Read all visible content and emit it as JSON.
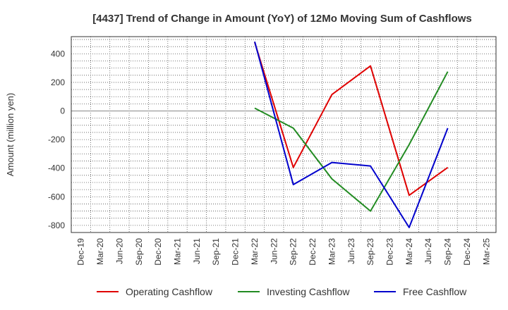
{
  "chart_data": {
    "type": "line",
    "title": "[4437]  Trend of Change in Amount (YoY) of 12Mo Moving Sum of Cashflows",
    "xlabel": "",
    "ylabel": "Amount (million yen)",
    "ylim": [
      -850,
      520
    ],
    "yticks": [
      400,
      200,
      0,
      -200,
      -400,
      -600,
      -800
    ],
    "categories": [
      "Dec-19",
      "Mar-20",
      "Jun-20",
      "Sep-20",
      "Dec-20",
      "Mar-21",
      "Jun-21",
      "Sep-21",
      "Dec-21",
      "Mar-22",
      "Jun-22",
      "Sep-22",
      "Dec-22",
      "Mar-23",
      "Jun-23",
      "Sep-23",
      "Dec-23",
      "Mar-24",
      "Jun-24",
      "Sep-24",
      "Dec-24",
      "Mar-25"
    ],
    "series": [
      {
        "name": "Operating Cashflow",
        "color": "#e00000",
        "values": [
          null,
          null,
          null,
          null,
          null,
          null,
          null,
          null,
          null,
          480,
          null,
          -395,
          null,
          115,
          null,
          315,
          null,
          -590,
          null,
          -395,
          null,
          null
        ]
      },
      {
        "name": "Investing Cashflow",
        "color": "#228b22",
        "values": [
          null,
          null,
          null,
          null,
          null,
          null,
          null,
          null,
          null,
          20,
          null,
          -120,
          null,
          -475,
          null,
          -700,
          null,
          -235,
          null,
          275,
          null,
          null
        ]
      },
      {
        "name": "Free Cashflow",
        "color": "#0000cc",
        "values": [
          null,
          null,
          null,
          null,
          null,
          null,
          null,
          null,
          null,
          485,
          null,
          -515,
          null,
          -360,
          null,
          -385,
          null,
          -815,
          null,
          -120,
          null,
          null
        ]
      }
    ],
    "grid": true,
    "legend": "bottom"
  }
}
